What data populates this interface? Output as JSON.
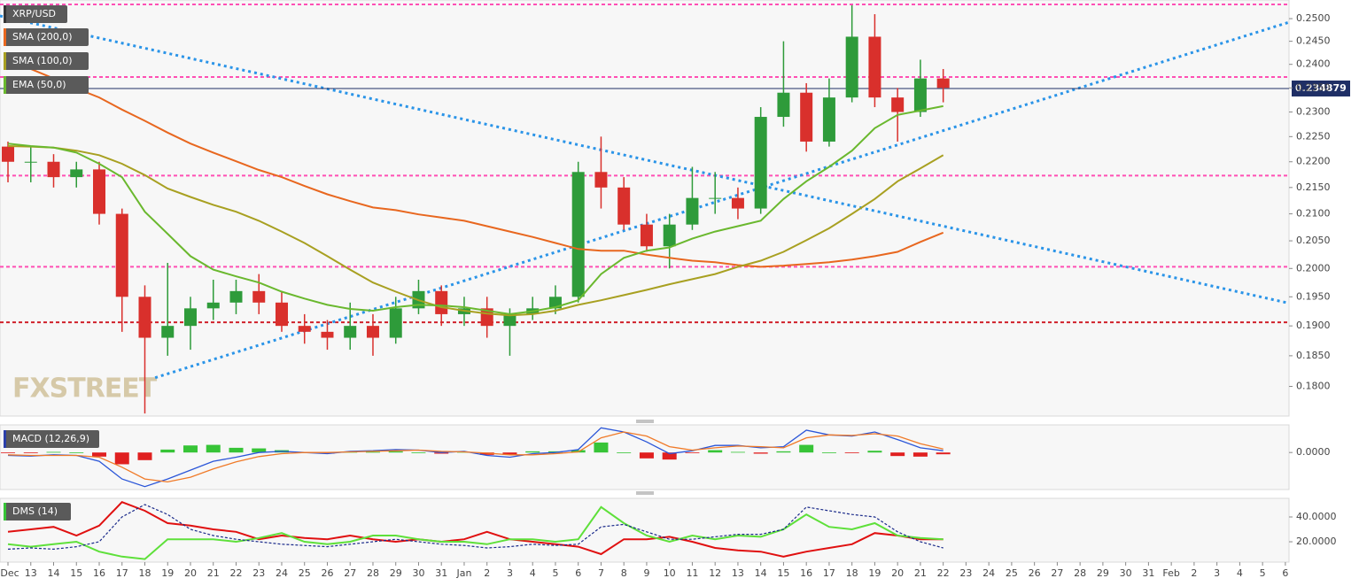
{
  "chart_data": [
    {
      "type": "candlestick",
      "title": "XRP/USD",
      "watermark": "FXSTREET",
      "log_scale": true,
      "up_color": "#2e9b3a",
      "down_color": "#d9302c",
      "x": [
        0,
        1,
        2,
        3,
        4,
        5,
        6,
        7,
        8,
        9,
        10,
        11,
        12,
        13,
        14,
        15,
        16,
        17,
        18,
        19,
        20,
        21,
        22,
        23,
        24,
        25,
        26,
        27,
        28,
        29,
        30,
        31,
        32,
        33,
        34,
        35,
        36,
        37,
        38,
        39,
        40,
        41
      ],
      "open": [
        0.223,
        0.22,
        0.22,
        0.217,
        0.2185,
        0.21,
        0.195,
        0.188,
        0.19,
        0.193,
        0.194,
        0.196,
        0.194,
        0.19,
        0.189,
        0.188,
        0.19,
        0.188,
        0.193,
        0.196,
        0.192,
        0.193,
        0.19,
        0.192,
        0.193,
        0.195,
        0.218,
        0.215,
        0.208,
        0.204,
        0.208,
        0.213,
        0.213,
        0.211,
        0.229,
        0.234,
        0.224,
        0.233,
        0.246,
        0.233,
        0.23,
        0.237
      ],
      "high": [
        0.224,
        0.223,
        0.2215,
        0.22,
        0.22,
        0.211,
        0.197,
        0.201,
        0.195,
        0.198,
        0.198,
        0.199,
        0.196,
        0.192,
        0.191,
        0.194,
        0.192,
        0.195,
        0.198,
        0.197,
        0.195,
        0.195,
        0.193,
        0.195,
        0.197,
        0.22,
        0.225,
        0.217,
        0.21,
        0.21,
        0.219,
        0.218,
        0.215,
        0.231,
        0.245,
        0.236,
        0.237,
        0.253,
        0.251,
        0.235,
        0.241,
        0.239
      ],
      "low": [
        0.216,
        0.216,
        0.215,
        0.215,
        0.208,
        0.189,
        0.1757,
        0.185,
        0.186,
        0.191,
        0.192,
        0.192,
        0.189,
        0.187,
        0.186,
        0.186,
        0.185,
        0.187,
        0.192,
        0.19,
        0.19,
        0.188,
        0.185,
        0.191,
        0.192,
        0.194,
        0.211,
        0.207,
        0.203,
        0.2,
        0.207,
        0.21,
        0.209,
        0.21,
        0.227,
        0.222,
        0.223,
        0.232,
        0.231,
        0.224,
        0.229,
        0.232
      ],
      "close": [
        0.22,
        0.22,
        0.217,
        0.2185,
        0.21,
        0.195,
        0.188,
        0.19,
        0.193,
        0.194,
        0.196,
        0.194,
        0.19,
        0.189,
        0.188,
        0.19,
        0.188,
        0.193,
        0.196,
        0.192,
        0.193,
        0.19,
        0.192,
        0.193,
        0.195,
        0.218,
        0.215,
        0.208,
        0.204,
        0.208,
        0.213,
        0.213,
        0.211,
        0.229,
        0.234,
        0.224,
        0.233,
        0.246,
        0.233,
        0.23,
        0.237,
        0.235
      ],
      "overlays": [
        {
          "name": "SMA (200,0)",
          "color": "#e8671f",
          "values": [
            0.2405,
            0.239,
            0.237,
            0.2349,
            0.233,
            0.2305,
            0.2282,
            0.2258,
            0.2236,
            0.2218,
            0.2201,
            0.2184,
            0.217,
            0.2153,
            0.2137,
            0.2124,
            0.2112,
            0.2107,
            0.2099,
            0.2093,
            0.2087,
            0.2077,
            0.2067,
            0.2057,
            0.2046,
            0.2035,
            0.2032,
            0.2032,
            0.2025,
            0.2019,
            0.2014,
            0.2011,
            0.2006,
            0.2003,
            0.2005,
            0.2008,
            0.2011,
            0.2016,
            0.2022,
            0.203,
            0.2048,
            0.2065
          ]
        },
        {
          "name": "SMA (100,0)",
          "color": "#a8a021",
          "values": [
            0.2231,
            0.223,
            0.2228,
            0.2222,
            0.2213,
            0.2196,
            0.2174,
            0.2148,
            0.2132,
            0.2117,
            0.2104,
            0.2087,
            0.2067,
            0.2046,
            0.2022,
            0.1998,
            0.1975,
            0.1959,
            0.1944,
            0.1932,
            0.1926,
            0.1921,
            0.1918,
            0.192,
            0.1926,
            0.1936,
            0.1944,
            0.1953,
            0.1962,
            0.1972,
            0.1981,
            0.199,
            0.2003,
            0.2014,
            0.203,
            0.2051,
            0.2073,
            0.21,
            0.2128,
            0.2162,
            0.2187,
            0.2213
          ]
        },
        {
          "name": "EMA (50,0)",
          "color": "#6ab82e",
          "values": [
            0.2236,
            0.2231,
            0.2228,
            0.2218,
            0.2196,
            0.217,
            0.2104,
            0.2063,
            0.2022,
            0.1998,
            0.1986,
            0.1975,
            0.1959,
            0.1947,
            0.1936,
            0.1929,
            0.1926,
            0.1932,
            0.1936,
            0.1935,
            0.1932,
            0.1926,
            0.192,
            0.1925,
            0.1932,
            0.1944,
            0.199,
            0.2019,
            0.2032,
            0.2038,
            0.2054,
            0.2067,
            0.2077,
            0.2087,
            0.2128,
            0.2162,
            0.219,
            0.2222,
            0.2267,
            0.2294,
            0.2303,
            0.2312
          ]
        }
      ],
      "levels": [
        {
          "value": 0.2532,
          "color": "#ff4fb4"
        },
        {
          "value": 0.2373,
          "color": "#ff4fb4"
        },
        {
          "value": 0.2173,
          "color": "#ff4fb4"
        },
        {
          "value": 0.2003,
          "color": "#ff4fb4"
        },
        {
          "value": 0.1906,
          "color": "#d0202a"
        }
      ],
      "trendlines": [
        {
          "color": "#2a94e8",
          "x": [
            -0.35,
            56.16
          ],
          "values": [
            0.2506,
            0.1939
          ]
        },
        {
          "color": "#2a94e8",
          "x": [
            6.45,
            56.16
          ],
          "values": [
            0.1814,
            0.2492
          ]
        }
      ],
      "last_price": 0.234879,
      "last_price_color": "#1f2f66",
      "xlim": [
        -0.35,
        56.16
      ],
      "ylim": [
        0.1753,
        0.2542
      ],
      "yticks": [
        {
          "value": 0.25,
          "label": "0.2500"
        },
        {
          "value": 0.245,
          "label": "0.2450"
        },
        {
          "value": 0.24,
          "label": "0.2400"
        },
        {
          "value": 0.235,
          "label": "0.2350"
        },
        {
          "value": 0.23,
          "label": "0.2300"
        },
        {
          "value": 0.225,
          "label": "0.2250"
        },
        {
          "value": 0.22,
          "label": "0.2200"
        },
        {
          "value": 0.215,
          "label": "0.2150"
        },
        {
          "value": 0.21,
          "label": "0.2100"
        },
        {
          "value": 0.205,
          "label": "0.2050"
        },
        {
          "value": 0.2,
          "label": "0.2000"
        },
        {
          "value": 0.195,
          "label": "0.1950"
        },
        {
          "value": 0.19,
          "label": "0.1900"
        },
        {
          "value": 0.185,
          "label": "0.1850"
        },
        {
          "value": 0.18,
          "label": "0.1800"
        }
      ],
      "xticks": [
        {
          "value": 0,
          "label": "Dec"
        },
        {
          "value": 1,
          "label": "13"
        },
        {
          "value": 2,
          "label": "14"
        },
        {
          "value": 3,
          "label": "15"
        },
        {
          "value": 4,
          "label": "16"
        },
        {
          "value": 5,
          "label": "17"
        },
        {
          "value": 6,
          "label": "18"
        },
        {
          "value": 7,
          "label": "19"
        },
        {
          "value": 8,
          "label": "20"
        },
        {
          "value": 9,
          "label": "21"
        },
        {
          "value": 10,
          "label": "22"
        },
        {
          "value": 11,
          "label": "23"
        },
        {
          "value": 12,
          "label": "24"
        },
        {
          "value": 13,
          "label": "25"
        },
        {
          "value": 14,
          "label": "26"
        },
        {
          "value": 15,
          "label": "27"
        },
        {
          "value": 16,
          "label": "28"
        },
        {
          "value": 17,
          "label": "29"
        },
        {
          "value": 18,
          "label": "30"
        },
        {
          "value": 19,
          "label": "31"
        },
        {
          "value": 20,
          "label": "Jan"
        },
        {
          "value": 21,
          "label": "2"
        },
        {
          "value": 22,
          "label": "3"
        },
        {
          "value": 23,
          "label": "4"
        },
        {
          "value": 24,
          "label": "5"
        },
        {
          "value": 25,
          "label": "6"
        },
        {
          "value": 26,
          "label": "7"
        },
        {
          "value": 27,
          "label": "8"
        },
        {
          "value": 28,
          "label": "9"
        },
        {
          "value": 29,
          "label": "10"
        },
        {
          "value": 30,
          "label": "11"
        },
        {
          "value": 31,
          "label": "12"
        },
        {
          "value": 32,
          "label": "13"
        },
        {
          "value": 33,
          "label": "14"
        },
        {
          "value": 34,
          "label": "15"
        },
        {
          "value": 35,
          "label": "16"
        },
        {
          "value": 36,
          "label": "17"
        },
        {
          "value": 37,
          "label": "18"
        },
        {
          "value": 38,
          "label": "19"
        },
        {
          "value": 39,
          "label": "20"
        },
        {
          "value": 40,
          "label": "21"
        },
        {
          "value": 41,
          "label": "22"
        },
        {
          "value": 42,
          "label": "23"
        },
        {
          "value": 43,
          "label": "24"
        },
        {
          "value": 44,
          "label": "25"
        },
        {
          "value": 45,
          "label": "26"
        },
        {
          "value": 46,
          "label": "27"
        },
        {
          "value": 47,
          "label": "28"
        },
        {
          "value": 48,
          "label": "29"
        },
        {
          "value": 49,
          "label": "30"
        },
        {
          "value": 50,
          "label": "31"
        },
        {
          "value": 51,
          "label": "Feb"
        },
        {
          "value": 52,
          "label": "2"
        },
        {
          "value": 53,
          "label": "3"
        },
        {
          "value": 54,
          "label": "4"
        },
        {
          "value": 55,
          "label": "5"
        },
        {
          "value": 56,
          "label": "6"
        }
      ]
    },
    {
      "type": "macd",
      "title": "MACD (12,26,9)",
      "title_color": "#2b3fa8",
      "x": [
        0,
        1,
        2,
        3,
        4,
        5,
        6,
        7,
        8,
        9,
        10,
        11,
        12,
        13,
        14,
        15,
        16,
        17,
        18,
        19,
        20,
        21,
        22,
        23,
        24,
        25,
        26,
        27,
        28,
        29,
        30,
        31,
        32,
        33,
        34,
        35,
        36,
        37,
        38,
        39,
        40,
        41
      ],
      "series": [
        {
          "color": "#2b56d8",
          "values": [
            -0.0005,
            -0.0006,
            -0.0004,
            -0.0005,
            -0.0015,
            -0.0045,
            -0.0058,
            -0.0045,
            -0.003,
            -0.0015,
            -0.0008,
            0.0,
            0.0002,
            0.0,
            -0.0002,
            0.0002,
            0.0003,
            0.0005,
            0.0004,
            0.0,
            0.0002,
            -0.0005,
            -0.0008,
            -0.0002,
            0.0,
            0.0005,
            0.0042,
            0.0035,
            0.0018,
            -0.0002,
            0.0003,
            0.0012,
            0.0012,
            0.0008,
            0.001,
            0.0038,
            0.003,
            0.0028,
            0.0035,
            0.0022,
            0.0008,
            0.0003
          ]
        },
        {
          "color": "#f07a28",
          "values": [
            -0.0004,
            -0.0005,
            -0.0005,
            -0.0005,
            -0.0008,
            -0.0025,
            -0.0045,
            -0.005,
            -0.0042,
            -0.0028,
            -0.0016,
            -0.0007,
            -0.0002,
            0.0,
            0.0,
            0.0001,
            0.0002,
            0.0003,
            0.0004,
            0.0002,
            0.0001,
            -0.0001,
            -0.0004,
            -0.0004,
            -0.0002,
            0.0001,
            0.0025,
            0.0035,
            0.0028,
            0.001,
            0.0004,
            0.0008,
            0.0011,
            0.001,
            0.0008,
            0.0025,
            0.003,
            0.0029,
            0.0032,
            0.0028,
            0.0015,
            0.0006
          ]
        }
      ],
      "histogram": {
        "up_color": "#37c437",
        "down_color": "#e02020",
        "values": [
          -0.0001,
          -0.0001,
          0.0001,
          0,
          -0.0007,
          -0.002,
          -0.0013,
          0.0005,
          0.0012,
          0.0013,
          0.0008,
          0.0007,
          0.0004,
          0,
          -0.0002,
          0.0001,
          0.0001,
          0.0002,
          0,
          -0.0002,
          0.0001,
          -0.0004,
          -0.0004,
          0.0002,
          0.0002,
          0.0004,
          0.0017,
          0,
          -0.001,
          -0.0012,
          -0.0001,
          0.0004,
          0.0001,
          -0.0002,
          0.0002,
          0.0013,
          0,
          -0.0001,
          0.0003,
          -0.0006,
          -0.0007,
          -0.0003
        ]
      },
      "xlim": [
        -0.35,
        56.16
      ],
      "ylim": [
        -0.0063,
        0.0047
      ],
      "yticks": [
        {
          "value": 0,
          "label": "0.0000"
        }
      ]
    },
    {
      "type": "line",
      "title": "DMS (14)",
      "title_color": "#37c437",
      "x": [
        0,
        1,
        2,
        3,
        4,
        5,
        6,
        7,
        8,
        9,
        10,
        11,
        12,
        13,
        14,
        15,
        16,
        17,
        18,
        19,
        20,
        21,
        22,
        23,
        24,
        25,
        26,
        27,
        28,
        29,
        30,
        31,
        32,
        33,
        34,
        35,
        36,
        37,
        38,
        39,
        40,
        41
      ],
      "series": [
        {
          "color": "#e01010",
          "values": [
            28,
            30,
            32,
            25,
            33,
            52,
            45,
            35,
            33,
            30,
            28,
            22,
            25,
            23,
            22,
            25,
            22,
            20,
            22,
            20,
            22,
            28,
            22,
            20,
            18,
            16,
            10,
            22,
            22,
            24,
            20,
            15,
            13,
            12,
            8,
            12,
            15,
            18,
            27,
            25,
            22,
            22
          ]
        },
        {
          "color": "#5ee03a",
          "values": [
            18,
            16,
            18,
            20,
            12,
            8,
            6,
            22,
            22,
            22,
            20,
            23,
            27,
            20,
            18,
            20,
            25,
            25,
            22,
            20,
            20,
            18,
            22,
            22,
            20,
            22,
            48,
            35,
            25,
            20,
            25,
            22,
            25,
            24,
            30,
            42,
            32,
            30,
            35,
            25,
            23,
            22
          ]
        },
        {
          "color": "#1a2a8a",
          "dashed": true,
          "values": [
            14,
            15,
            14,
            16,
            20,
            40,
            50,
            42,
            30,
            25,
            22,
            20,
            18,
            17,
            16,
            18,
            20,
            22,
            20,
            18,
            17,
            15,
            16,
            18,
            17,
            18,
            32,
            34,
            28,
            22,
            22,
            24,
            26,
            26,
            30,
            48,
            45,
            42,
            40,
            28,
            20,
            15
          ]
        }
      ],
      "xlim": [
        -0.35,
        56.16
      ],
      "ylim": [
        3.6,
        55
      ],
      "yticks": [
        {
          "value": 40,
          "label": "40.0000"
        },
        {
          "value": 20,
          "label": "20.0000"
        }
      ]
    }
  ]
}
